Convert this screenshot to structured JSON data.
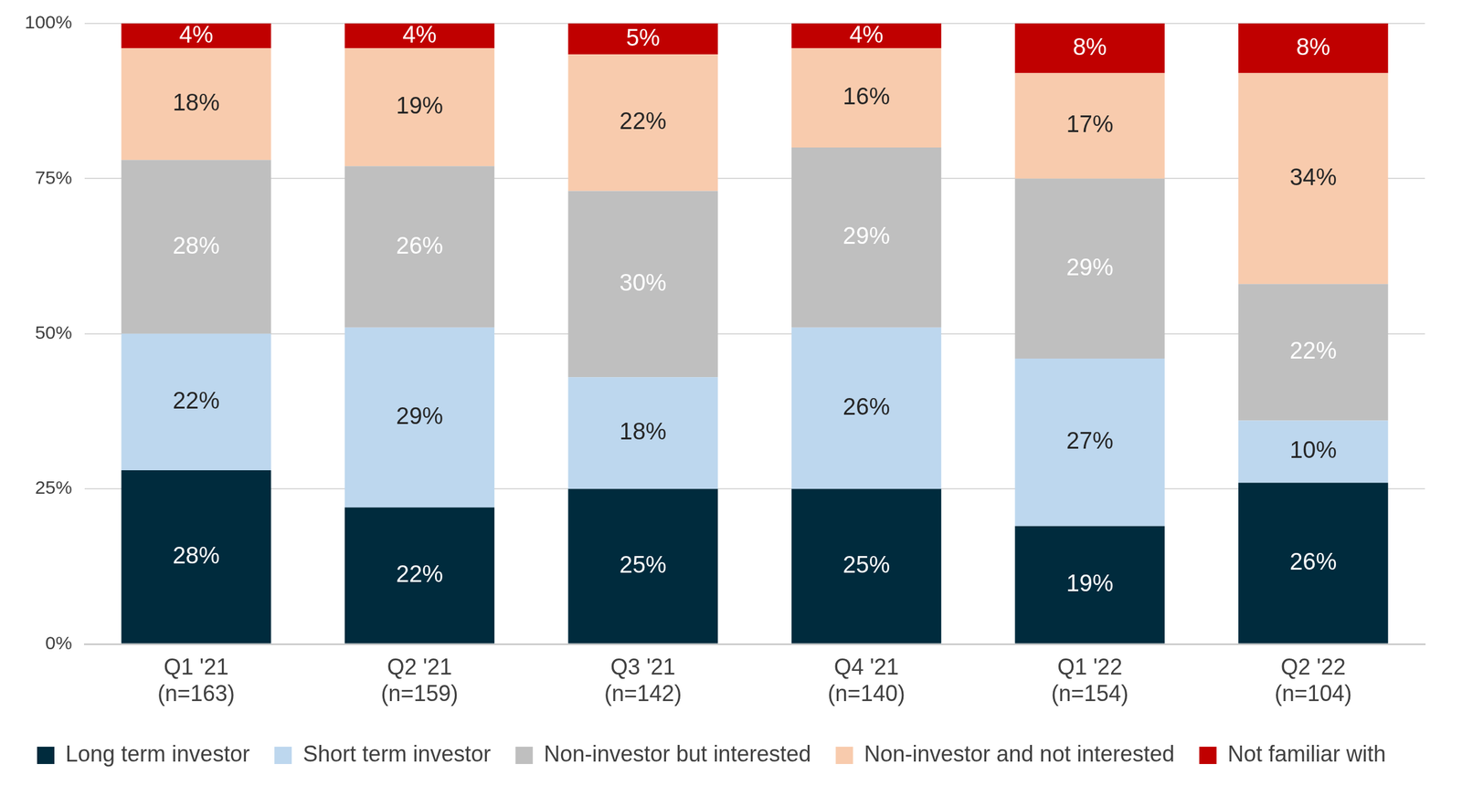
{
  "chart_data": {
    "type": "bar",
    "stacked": true,
    "data_labels": true,
    "grid": true,
    "legend": "bottom",
    "categories": [
      "Q1 '21\n(n=163)",
      "Q2 '21\n(n=159)",
      "Q3 '21\n(n=142)",
      "Q4 '21\n(n=140)",
      "Q1 '22\n(n=154)",
      "Q2 '22\n(n=104)"
    ],
    "series": [
      {
        "name": "Long term investor",
        "color": "#002B3D",
        "values": [
          28,
          22,
          25,
          25,
          19,
          26
        ],
        "value_labels": [
          "28%",
          "22%",
          "25%",
          "25%",
          "19%",
          "26%"
        ]
      },
      {
        "name": "Short term investor",
        "color": "#BDD7EE",
        "values": [
          22,
          29,
          18,
          26,
          27,
          10
        ],
        "value_labels": [
          "22%",
          "29%",
          "18%",
          "26%",
          "27%",
          "10%"
        ]
      },
      {
        "name": "Non-investor but interested",
        "color": "#BFBFBF",
        "values": [
          28,
          26,
          30,
          29,
          29,
          22
        ],
        "value_labels": [
          "28%",
          "26%",
          "30%",
          "29%",
          "29%",
          "22%"
        ]
      },
      {
        "name": "Non-investor and not interested",
        "color": "#F8CBAD",
        "values": [
          18,
          19,
          22,
          16,
          17,
          34
        ],
        "value_labels": [
          "18%",
          "19%",
          "22%",
          "16%",
          "17%",
          "34%"
        ]
      },
      {
        "name": "Not familiar with",
        "color": "#C00000",
        "values": [
          4,
          4,
          5,
          4,
          8,
          8
        ],
        "value_labels": [
          "4%",
          "4%",
          "5%",
          "4%",
          "8%",
          "8%"
        ]
      }
    ],
    "ylim": [
      0,
      100
    ],
    "yticks": [
      {
        "value": 0,
        "label": "0%"
      },
      {
        "value": 25,
        "label": "25%"
      },
      {
        "value": 50,
        "label": "50%"
      },
      {
        "value": 75,
        "label": "75%"
      },
      {
        "value": 100,
        "label": "100%"
      }
    ]
  }
}
